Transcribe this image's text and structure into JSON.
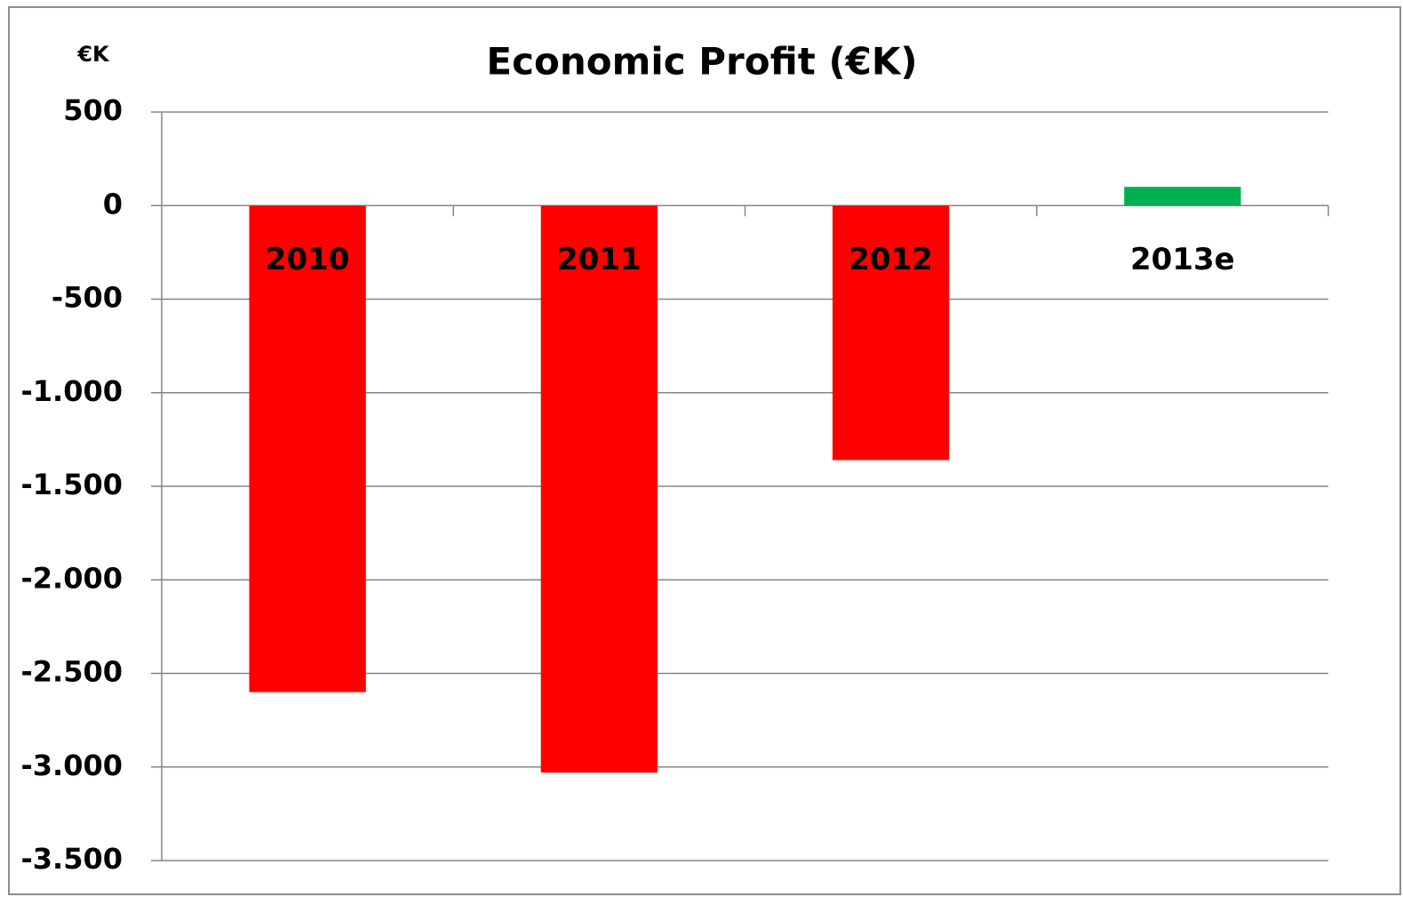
{
  "chart_data": {
    "type": "bar",
    "title": "Economic Profit (€K)",
    "y_axis_label": "€K",
    "categories": [
      "2010",
      "2011",
      "2012",
      "2013e"
    ],
    "values": [
      -2600,
      -3030,
      -1360,
      100
    ],
    "colors": [
      "#ff0000",
      "#ff0000",
      "#ff0000",
      "#00b050"
    ],
    "ylim": [
      -3500,
      500
    ],
    "yticks": [
      500,
      0,
      -500,
      {
        "value": -1000,
        "label": "-1.000"
      },
      {
        "value": -1500,
        "label": "-1.500"
      },
      {
        "value": -2000,
        "label": "-2.000"
      },
      {
        "value": -2500,
        "label": "-2.500"
      },
      {
        "value": -3000,
        "label": "-3.000"
      },
      {
        "value": -3500,
        "label": "-3.500"
      }
    ],
    "grid": true
  }
}
